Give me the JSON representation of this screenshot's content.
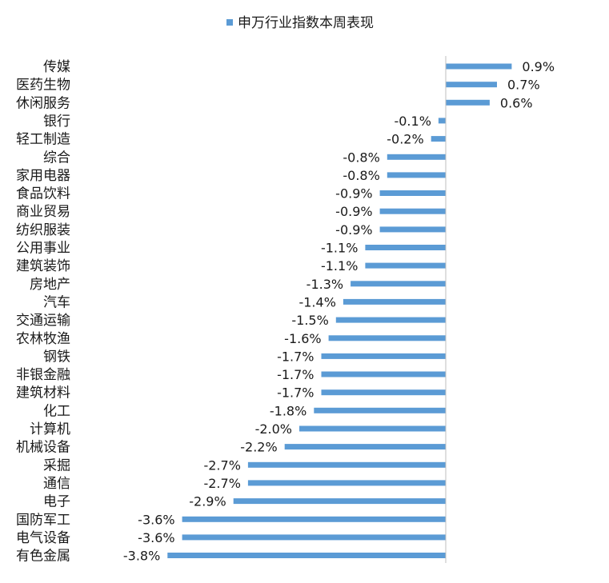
{
  "chart_data": {
    "type": "bar",
    "orientation": "horizontal",
    "legend": {
      "position": "top-center",
      "entries": [
        "申万行业指数本周表现"
      ]
    },
    "colors": {
      "bar": "#5B9BD5",
      "axis": "#BFBFBF"
    },
    "categories": [
      "传媒",
      "医药生物",
      "休闲服务",
      "银行",
      "轻工制造",
      "综合",
      "家用电器",
      "食品饮料",
      "商业贸易",
      "纺织服装",
      "公用事业",
      "建筑装饰",
      "房地产",
      "汽车",
      "交通运输",
      "农林牧渔",
      "钢铁",
      "非银金融",
      "建筑材料",
      "化工",
      "计算机",
      "机械设备",
      "采掘",
      "通信",
      "电子",
      "国防军工",
      "电气设备",
      "有色金属"
    ],
    "series": [
      {
        "name": "申万行业指数本周表现",
        "values": [
          0.9,
          0.7,
          0.6,
          -0.1,
          -0.2,
          -0.8,
          -0.8,
          -0.9,
          -0.9,
          -0.9,
          -1.1,
          -1.1,
          -1.3,
          -1.4,
          -1.5,
          -1.6,
          -1.7,
          -1.7,
          -1.7,
          -1.8,
          -2.0,
          -2.2,
          -2.7,
          -2.7,
          -2.9,
          -3.6,
          -3.6,
          -3.8
        ],
        "labels": [
          "0.9%",
          "0.7%",
          "0.6%",
          "-0.1%",
          "-0.2%",
          "-0.8%",
          "-0.8%",
          "-0.9%",
          "-0.9%",
          "-0.9%",
          "-1.1%",
          "-1.1%",
          "-1.3%",
          "-1.4%",
          "-1.5%",
          "-1.6%",
          "-1.7%",
          "-1.7%",
          "-1.7%",
          "-1.8%",
          "-2.0%",
          "-2.2%",
          "-2.7%",
          "-2.7%",
          "-2.9%",
          "-3.6%",
          "-3.6%",
          "-3.8%"
        ]
      }
    ],
    "xlim": [
      -3.8,
      0.9
    ],
    "grid": false
  }
}
